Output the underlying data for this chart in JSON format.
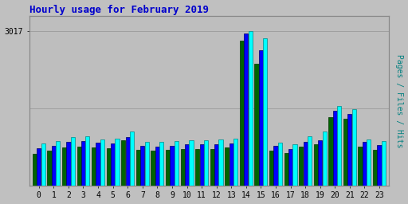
{
  "title": "Hourly usage for February 2019",
  "title_color": "#0000cc",
  "title_fontsize": 9,
  "ylabel_right": "Pages / Files / Hits",
  "hours": [
    0,
    1,
    2,
    3,
    4,
    5,
    6,
    7,
    8,
    9,
    10,
    11,
    12,
    13,
    14,
    15,
    16,
    17,
    18,
    19,
    20,
    21,
    22,
    23
  ],
  "ymax": 3017,
  "ytick_label": "3017",
  "background_color": "#c0c0c0",
  "plot_bg_color": "#bebebe",
  "bar_width": 0.28,
  "hits_values": [
    820,
    870,
    940,
    960,
    900,
    920,
    1050,
    855,
    855,
    865,
    890,
    885,
    900,
    910,
    3017,
    2880,
    840,
    800,
    970,
    1050,
    1560,
    1490,
    900,
    870
  ],
  "pages_values": [
    620,
    680,
    750,
    760,
    740,
    730,
    880,
    700,
    690,
    705,
    715,
    720,
    720,
    750,
    2830,
    2380,
    690,
    630,
    755,
    810,
    1340,
    1310,
    760,
    700
  ],
  "files_values": [
    730,
    780,
    850,
    870,
    840,
    830,
    950,
    775,
    765,
    780,
    805,
    800,
    800,
    820,
    2970,
    2640,
    778,
    710,
    860,
    890,
    1460,
    1400,
    850,
    785
  ],
  "hits_color": "#00ffff",
  "files_color": "#0000ff",
  "pages_color": "#006400",
  "grid_color": "#b0b0b0",
  "font_family": "monospace"
}
